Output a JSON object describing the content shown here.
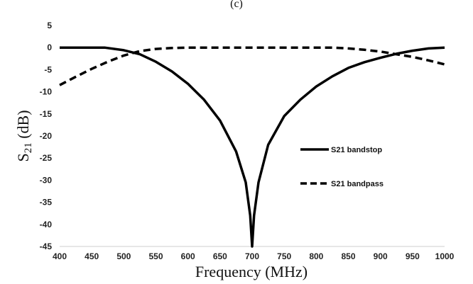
{
  "chart_data": {
    "type": "line",
    "heading": "(c)",
    "xlabel": "Frequency (MHz)",
    "ylabel": "S21 (dB)",
    "xlim": [
      400,
      1000
    ],
    "ylim": [
      -45,
      5
    ],
    "x_ticks": [
      400,
      450,
      500,
      550,
      600,
      650,
      700,
      750,
      800,
      850,
      900,
      950,
      1000
    ],
    "y_ticks": [
      5,
      0,
      -5,
      -10,
      -15,
      -20,
      -25,
      -30,
      -35,
      -40,
      -45
    ],
    "grid": false,
    "legend_position": "right-middle",
    "series": [
      {
        "name": "S21 bandstop",
        "line_style": "solid",
        "color": "#000000",
        "x": [
          400,
          450,
          470,
          500,
          525,
          550,
          575,
          600,
          625,
          650,
          675,
          690,
          697,
          700,
          703,
          710,
          725,
          750,
          775,
          800,
          825,
          850,
          875,
          900,
          925,
          950,
          975,
          1000
        ],
        "y": [
          0,
          0,
          0,
          -0.6,
          -1.5,
          -3.2,
          -5.4,
          -8.2,
          -11.8,
          -16.5,
          -23.5,
          -30.5,
          -38,
          -45,
          -38,
          -30.5,
          -22,
          -15.5,
          -11.8,
          -8.8,
          -6.5,
          -4.6,
          -3.3,
          -2.3,
          -1.4,
          -0.7,
          -0.2,
          0
        ]
      },
      {
        "name": "S21 bandpass",
        "line_style": "dashed",
        "color": "#000000",
        "x": [
          400,
          425,
          450,
          475,
          500,
          525,
          550,
          575,
          600,
          650,
          700,
          750,
          800,
          825,
          850,
          875,
          900,
          925,
          950,
          975,
          1000
        ],
        "y": [
          -8.5,
          -6.6,
          -4.8,
          -3.2,
          -1.8,
          -0.8,
          -0.3,
          -0.1,
          0,
          0,
          0,
          0,
          0,
          0,
          -0.2,
          -0.5,
          -0.9,
          -1.5,
          -2.1,
          -2.9,
          -3.8
        ]
      }
    ]
  }
}
